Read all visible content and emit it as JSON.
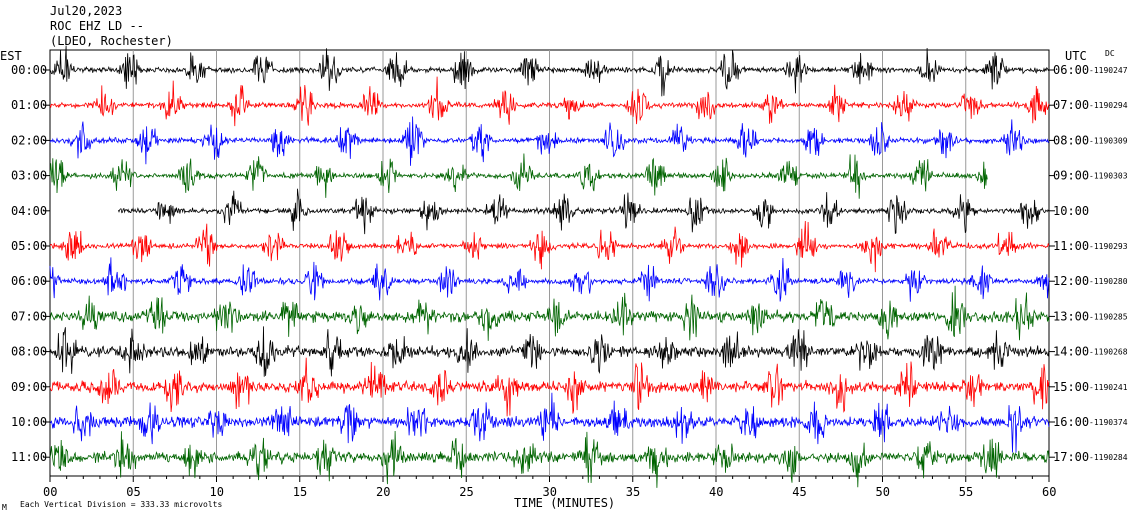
{
  "header": {
    "date": "Jul20,2023",
    "station": "ROC EHZ LD --",
    "network": "(LDEO, Rochester)"
  },
  "left_timezone": "EST",
  "right_timezone": "UTC",
  "dc_label": "DC",
  "footer": {
    "scale_note": "Each Vertical Division =  333.33 microvolts",
    "corner_mark": "M"
  },
  "chart_data": {
    "type": "line",
    "title": "",
    "xlabel": "TIME (MINUTES)",
    "ylabel": "",
    "xlim": [
      0,
      60
    ],
    "x_ticks": [
      "00",
      "05",
      "10",
      "15",
      "20",
      "25",
      "30",
      "35",
      "40",
      "45",
      "50",
      "55",
      "60"
    ],
    "grid_vertical_every_min": 5,
    "trace_colors": [
      "#000000",
      "#ff0000",
      "#0000ff",
      "#006400"
    ],
    "rows": [
      {
        "est": "00:00",
        "utc": "06:00",
        "dc": "-1190247",
        "color": "#000000",
        "start_min": 0,
        "end_min": 60
      },
      {
        "est": "01:00",
        "utc": "07:00",
        "dc": "-1190294",
        "color": "#ff0000",
        "start_min": 0,
        "end_min": 60
      },
      {
        "est": "02:00",
        "utc": "08:00",
        "dc": "-1190309",
        "color": "#0000ff",
        "start_min": 0,
        "end_min": 60
      },
      {
        "est": "03:00",
        "utc": "09:00",
        "dc": "-1190303",
        "color": "#006400",
        "start_min": 0,
        "end_min": 56.3
      },
      {
        "est": "04:00",
        "utc": "10:00",
        "dc": "",
        "color": "#000000",
        "start_min": 4.1,
        "end_min": 60
      },
      {
        "est": "05:00",
        "utc": "11:00",
        "dc": "-1190293",
        "color": "#ff0000",
        "start_min": 0,
        "end_min": 60
      },
      {
        "est": "06:00",
        "utc": "12:00",
        "dc": "-1190280",
        "color": "#0000ff",
        "start_min": 0,
        "end_min": 60
      },
      {
        "est": "07:00",
        "utc": "13:00",
        "dc": "-1190285",
        "color": "#006400",
        "start_min": 0,
        "end_min": 60
      },
      {
        "est": "08:00",
        "utc": "14:00",
        "dc": "-1190268",
        "color": "#000000",
        "start_min": 0,
        "end_min": 60
      },
      {
        "est": "09:00",
        "utc": "15:00",
        "dc": "-1190241",
        "color": "#ff0000",
        "start_min": 0,
        "end_min": 60
      },
      {
        "est": "10:00",
        "utc": "16:00",
        "dc": "-1190374",
        "color": "#0000ff",
        "start_min": 0,
        "end_min": 60
      },
      {
        "est": "11:00",
        "utc": "17:00",
        "dc": "-1190284",
        "color": "#006400",
        "start_min": 0,
        "end_min": 60
      }
    ]
  }
}
